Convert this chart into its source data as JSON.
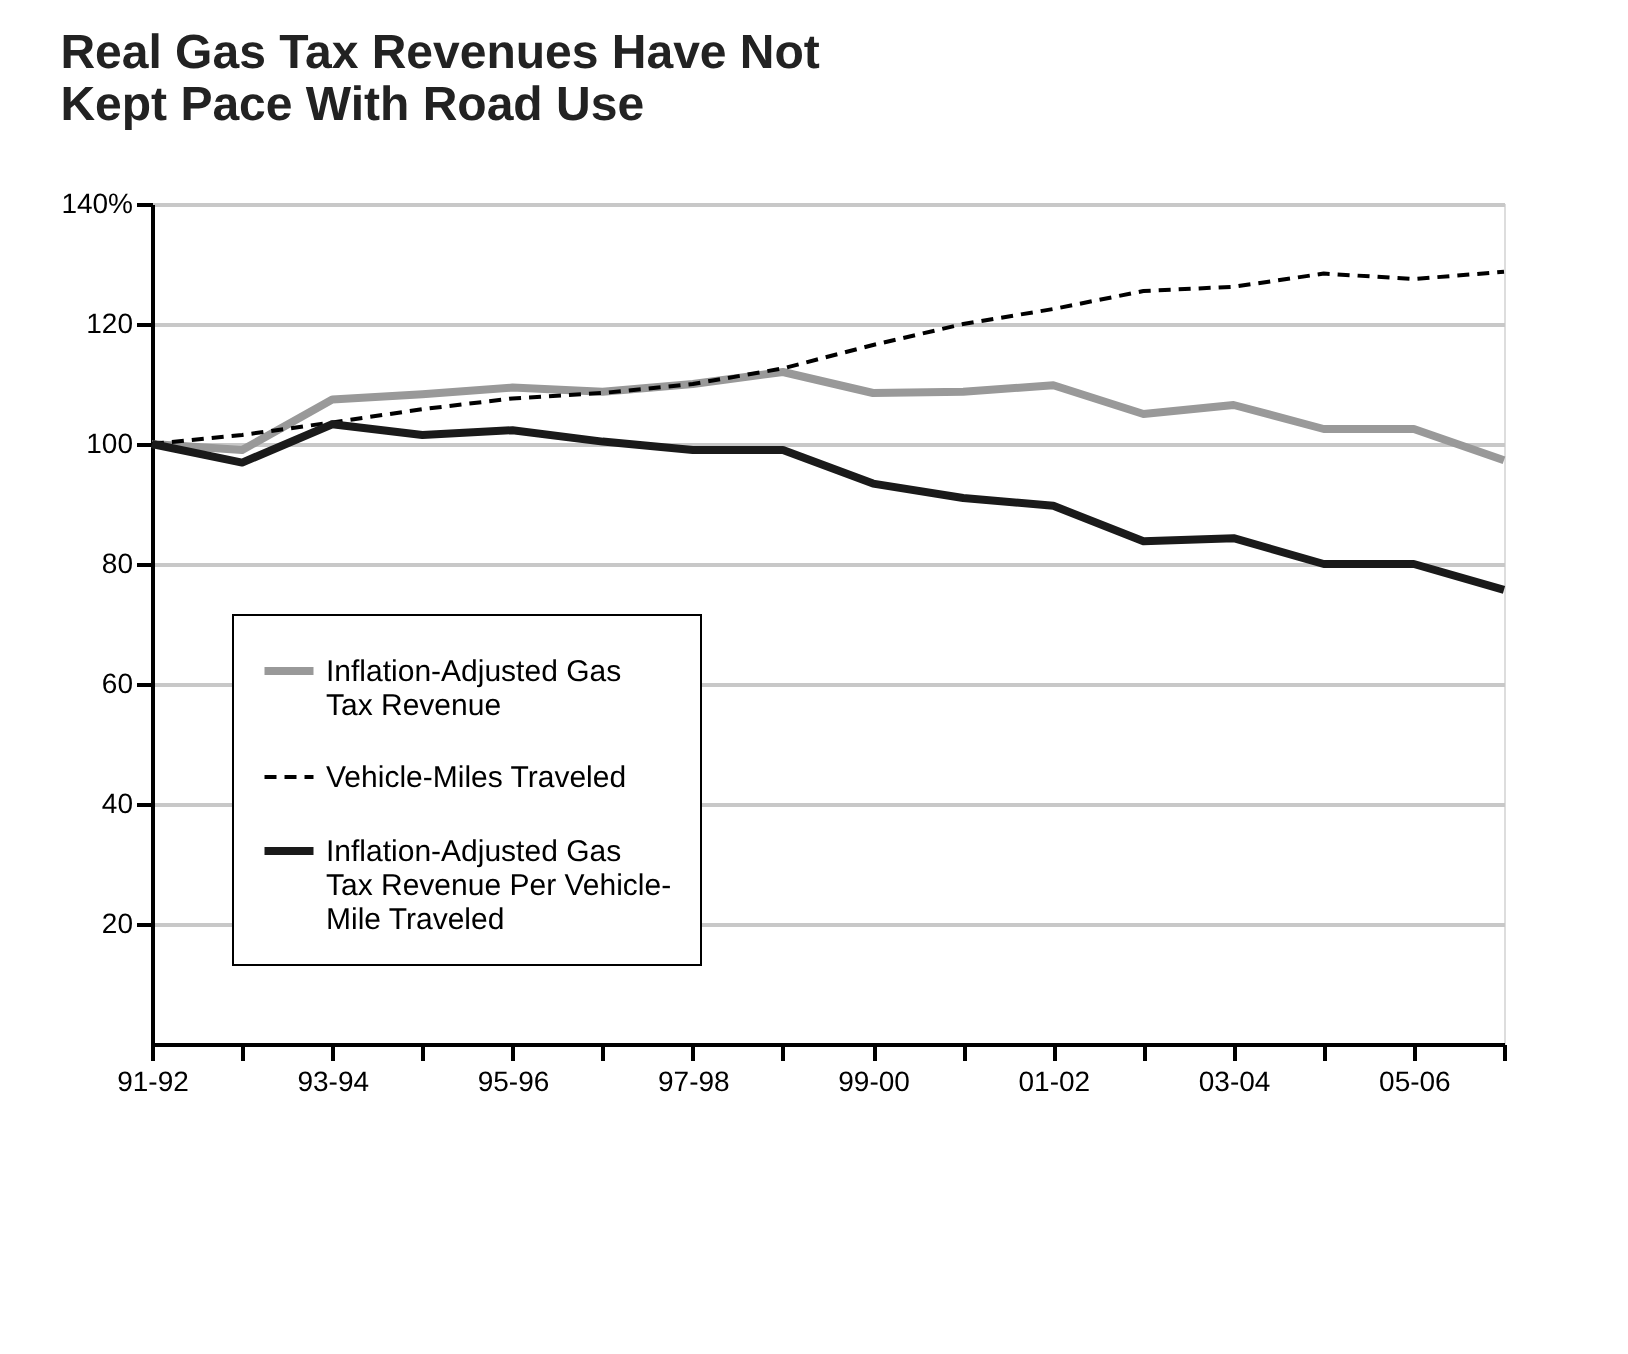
{
  "chart_data": {
    "type": "line",
    "title": "Real Gas Tax Revenues Have Not Kept Pace With Road Use",
    "categories": [
      "91-92",
      null,
      "93-94",
      null,
      "95-96",
      null,
      "97-98",
      null,
      "99-00",
      null,
      "01-02",
      null,
      "03-04",
      null,
      "05-06",
      null
    ],
    "series": [
      {
        "name": "Inflation-Adjusted Gas Tax Revenue",
        "color": "#999999",
        "line_style": "solid",
        "values": [
          100,
          99,
          107.4,
          108.3,
          109.4,
          108.7,
          110,
          112,
          108.5,
          108.7,
          109.8,
          105,
          106.5,
          102.5,
          102.5,
          97.3
        ]
      },
      {
        "name": "Vehicle-Miles Traveled",
        "color": "#000000",
        "line_style": "dashed",
        "values": [
          100,
          101.5,
          103.6,
          105.8,
          107.6,
          108.5,
          110,
          112.6,
          116.5,
          120,
          122.5,
          125.5,
          126.2,
          128.4,
          127.5,
          128.7
        ]
      },
      {
        "name": "Inflation-Adjusted Gas Tax Revenue Per Vehicle-Mile Traveled",
        "color": "#1a1a1a",
        "line_style": "solid",
        "values": [
          100,
          96.9,
          103.3,
          101.5,
          102.3,
          100.4,
          99,
          99,
          93.4,
          91,
          89.7,
          83.8,
          84.3,
          80,
          80,
          75.7
        ]
      }
    ],
    "ylim": [
      0,
      140
    ],
    "yticks": [
      20,
      40,
      60,
      80,
      100,
      120,
      {
        "value": 140,
        "label": "140%"
      }
    ],
    "grid": "y",
    "legend": "bottom left",
    "marker": "none"
  }
}
